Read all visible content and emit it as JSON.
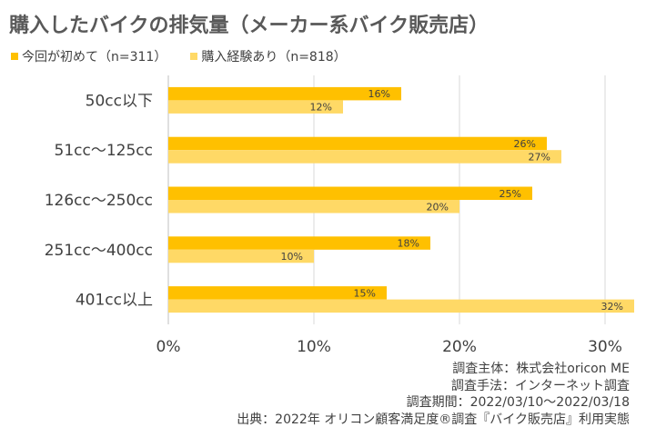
{
  "chart_data": {
    "type": "bar",
    "orientation": "horizontal",
    "title": "購入したバイクの排気量（メーカー系バイク販売店）",
    "categories": [
      "50cc以下",
      "51cc～125cc",
      "126cc～250cc",
      "251cc～400cc",
      "401cc以上"
    ],
    "series": [
      {
        "name": "今回が初めて（n=311）",
        "color": "#ffc000",
        "values": [
          16,
          26,
          25,
          18,
          15
        ]
      },
      {
        "name": "購入経験あり（n=818）",
        "color": "#ffd966",
        "values": [
          12,
          27,
          20,
          10,
          32
        ]
      }
    ],
    "xlim": [
      0,
      32
    ],
    "xticks": [
      0,
      10,
      20,
      30
    ],
    "tick_suffix": "%",
    "grid": true,
    "legend": "top-left"
  },
  "footer": {
    "line1": "調査主体：株式会社oricon ME",
    "line2": "調査手法：インターネット調査",
    "line3": "調査期間：2022/03/10～2022/03/18",
    "line4": "出典：2022年 オリコン顧客満足度®調査『バイク販売店』利用実態"
  }
}
